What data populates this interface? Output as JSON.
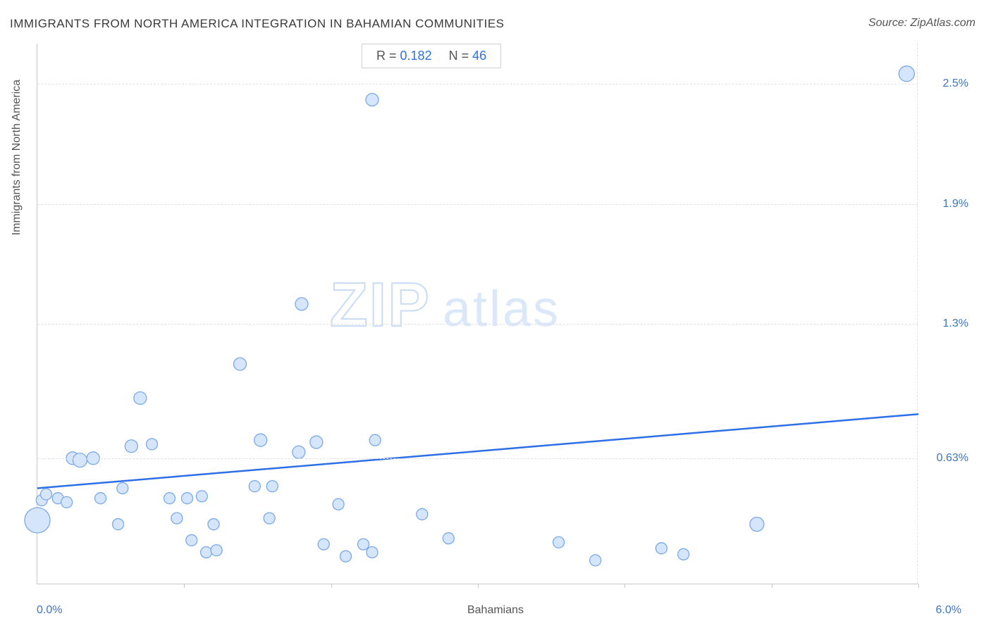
{
  "title": "IMMIGRANTS FROM NORTH AMERICA INTEGRATION IN BAHAMIAN COMMUNITIES",
  "source_label": "Source: ZipAtlas.com",
  "stats": {
    "r_label": "R =",
    "r_value": "0.182",
    "n_label": "N =",
    "n_value": "46"
  },
  "y_axis_label": "Immigrants from North America",
  "x_axis_label": "Bahamians",
  "x_min_label": "0.0%",
  "x_max_label": "6.0%",
  "watermark": {
    "zip": "ZIP",
    "atlas": "atlas"
  },
  "chart": {
    "type": "scatter",
    "xlim": [
      0.0,
      6.0
    ],
    "ylim": [
      0.0,
      2.7
    ],
    "y_ticks": [
      {
        "value": 0.63,
        "label": "0.63%"
      },
      {
        "value": 1.3,
        "label": "1.3%"
      },
      {
        "value": 1.9,
        "label": "1.9%"
      },
      {
        "value": 2.5,
        "label": "2.5%"
      }
    ],
    "x_tick_step": 1.0,
    "x_tick_values": [
      1.0,
      2.0,
      3.0,
      4.0,
      5.0,
      6.0
    ],
    "grid_color": "#e1e1e1",
    "axis_color": "#c7c7c7",
    "marker_fill": "#d5e5fb",
    "marker_stroke": "#7aa9ea",
    "marker_radius_default": 8,
    "regression_line": {
      "x1": 0.0,
      "y1": 0.48,
      "x2": 6.0,
      "y2": 0.85,
      "color": "#2d6fe8",
      "width": 2.5
    },
    "points": [
      {
        "x": 0.0,
        "y": 0.32,
        "r": 18
      },
      {
        "x": 0.03,
        "y": 0.42,
        "r": 8
      },
      {
        "x": 0.06,
        "y": 0.45,
        "r": 8
      },
      {
        "x": 0.14,
        "y": 0.43,
        "r": 8
      },
      {
        "x": 0.2,
        "y": 0.41,
        "r": 8
      },
      {
        "x": 0.24,
        "y": 0.63,
        "r": 9
      },
      {
        "x": 0.29,
        "y": 0.62,
        "r": 10
      },
      {
        "x": 0.38,
        "y": 0.63,
        "r": 9
      },
      {
        "x": 0.43,
        "y": 0.43,
        "r": 8
      },
      {
        "x": 0.55,
        "y": 0.3,
        "r": 8
      },
      {
        "x": 0.58,
        "y": 0.48,
        "r": 8
      },
      {
        "x": 0.64,
        "y": 0.69,
        "r": 9
      },
      {
        "x": 0.7,
        "y": 0.93,
        "r": 9
      },
      {
        "x": 0.78,
        "y": 0.7,
        "r": 8
      },
      {
        "x": 0.9,
        "y": 0.43,
        "r": 8
      },
      {
        "x": 0.95,
        "y": 0.33,
        "r": 8
      },
      {
        "x": 1.02,
        "y": 0.43,
        "r": 8
      },
      {
        "x": 1.05,
        "y": 0.22,
        "r": 8
      },
      {
        "x": 1.12,
        "y": 0.44,
        "r": 8
      },
      {
        "x": 1.2,
        "y": 0.3,
        "r": 8
      },
      {
        "x": 1.15,
        "y": 0.16,
        "r": 8
      },
      {
        "x": 1.22,
        "y": 0.17,
        "r": 8
      },
      {
        "x": 1.38,
        "y": 1.1,
        "r": 9
      },
      {
        "x": 1.48,
        "y": 0.49,
        "r": 8
      },
      {
        "x": 1.52,
        "y": 0.72,
        "r": 9
      },
      {
        "x": 1.58,
        "y": 0.33,
        "r": 8
      },
      {
        "x": 1.6,
        "y": 0.49,
        "r": 8
      },
      {
        "x": 1.78,
        "y": 0.66,
        "r": 9
      },
      {
        "x": 1.8,
        "y": 1.4,
        "r": 9
      },
      {
        "x": 1.9,
        "y": 0.71,
        "r": 9
      },
      {
        "x": 1.95,
        "y": 0.2,
        "r": 8
      },
      {
        "x": 2.05,
        "y": 0.4,
        "r": 8
      },
      {
        "x": 2.1,
        "y": 0.14,
        "r": 8
      },
      {
        "x": 2.22,
        "y": 0.2,
        "r": 8
      },
      {
        "x": 2.28,
        "y": 0.16,
        "r": 8
      },
      {
        "x": 2.28,
        "y": 2.42,
        "r": 9
      },
      {
        "x": 2.3,
        "y": 0.72,
        "r": 8
      },
      {
        "x": 2.62,
        "y": 0.35,
        "r": 8
      },
      {
        "x": 2.8,
        "y": 0.23,
        "r": 8
      },
      {
        "x": 3.55,
        "y": 0.21,
        "r": 8
      },
      {
        "x": 3.8,
        "y": 0.12,
        "r": 8
      },
      {
        "x": 4.25,
        "y": 0.18,
        "r": 8
      },
      {
        "x": 4.4,
        "y": 0.15,
        "r": 8
      },
      {
        "x": 4.9,
        "y": 0.3,
        "r": 10
      },
      {
        "x": 5.92,
        "y": 2.55,
        "r": 11
      }
    ]
  }
}
